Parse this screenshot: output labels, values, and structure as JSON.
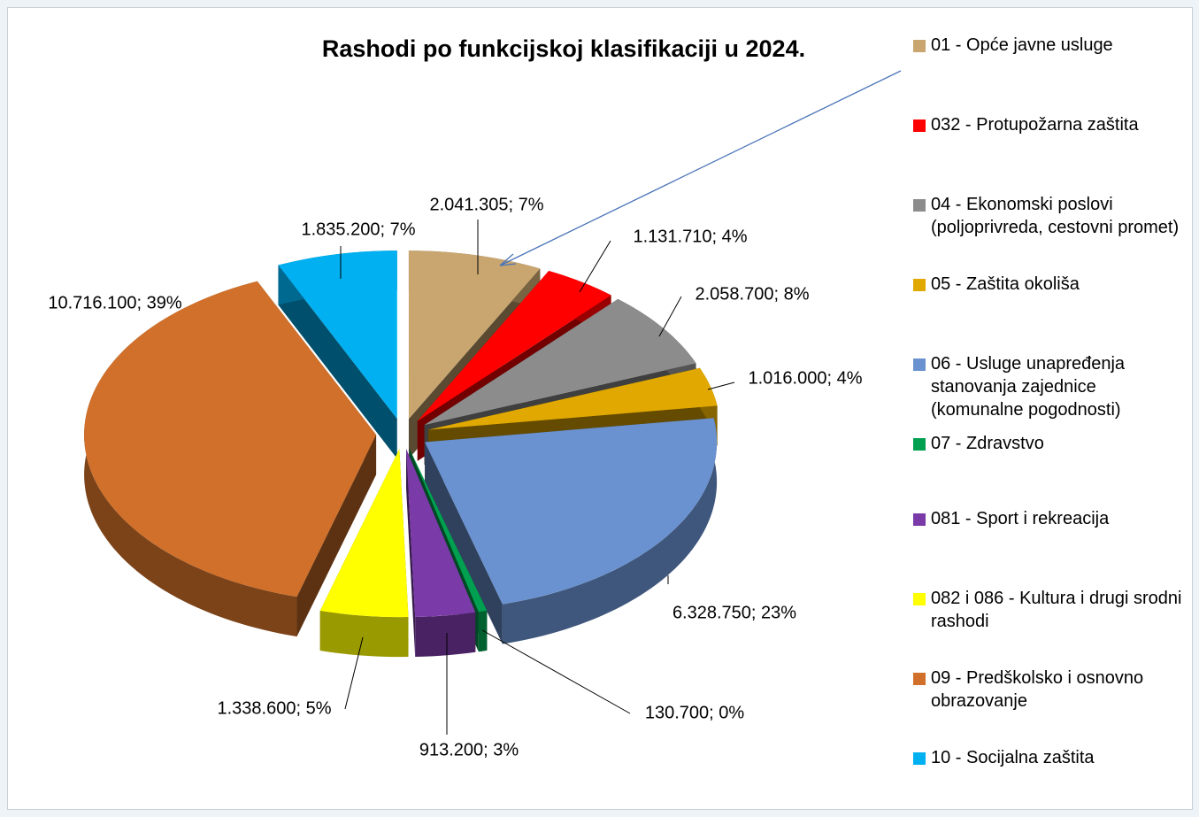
{
  "chart_data": {
    "type": "pie",
    "title": "Rashodi po funkcijskoj klasifikaciji u 2024.",
    "categories": [
      "01 - Opće javne usluge",
      "032 - Protupožarna zaštita",
      "04 - Ekonomski poslovi (poljoprivreda, cestovni promet)",
      "05 - Zaštita okoliša",
      "06 - Usluge unapređenja stanovanja zajednice (komunalne pogodnosti)",
      "07 - Zdravstvo",
      "081 - Sport i rekreacija",
      "082 i 086 - Kultura i drugi srodni rashodi",
      "09 - Predškolsko i osnovno obrazovanje",
      "10 - Socijalna zaštita"
    ],
    "values": [
      2041305,
      1131710,
      2058700,
      1016000,
      6328750,
      130700,
      913200,
      1338600,
      10716100,
      1835200
    ],
    "value_labels": [
      "2.041.305; 7%",
      "1.131.710; 4%",
      "2.058.700; 8%",
      "1.016.000; 4%",
      "6.328.750; 23%",
      "130.700; 0%",
      "913.200; 3%",
      "1.338.600; 5%",
      "10.716.100; 39%",
      "1.835.200; 7%"
    ],
    "colors": [
      "#c9a66f",
      "#ff0000",
      "#8c8c8c",
      "#e0a800",
      "#6a92d0",
      "#00a050",
      "#7a3aa8",
      "#ffff00",
      "#d0702a",
      "#00b0f0"
    ],
    "legend": "right"
  }
}
